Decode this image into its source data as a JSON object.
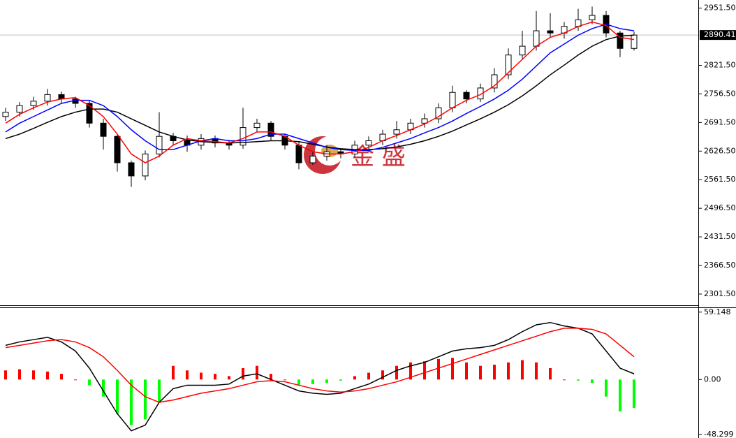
{
  "chart_data": [
    {
      "type": "candlestick",
      "open": [
        2705,
        2715,
        2730,
        2740,
        2755,
        2745,
        2735,
        2690,
        2660,
        2600,
        2570,
        2620,
        2660,
        2650,
        2640,
        2655,
        2645,
        2640,
        2680,
        2690,
        2660,
        2640,
        2600,
        2615,
        2625,
        2620,
        2640,
        2650,
        2665,
        2675,
        2690,
        2700,
        2725,
        2760,
        2745,
        2770,
        2800,
        2845,
        2865,
        2900,
        2895,
        2910,
        2925,
        2935,
        2895,
        2860
      ],
      "high": [
        2725,
        2738,
        2750,
        2768,
        2762,
        2750,
        2742,
        2700,
        2665,
        2605,
        2628,
        2715,
        2668,
        2662,
        2665,
        2662,
        2652,
        2725,
        2700,
        2695,
        2665,
        2648,
        2625,
        2640,
        2632,
        2650,
        2660,
        2675,
        2695,
        2700,
        2712,
        2735,
        2775,
        2765,
        2780,
        2815,
        2860,
        2900,
        2945,
        2940,
        2920,
        2950,
        2955,
        2945,
        2900,
        2898
      ],
      "low": [
        2695,
        2705,
        2720,
        2730,
        2735,
        2725,
        2680,
        2630,
        2580,
        2545,
        2560,
        2612,
        2640,
        2625,
        2630,
        2635,
        2630,
        2632,
        2670,
        2650,
        2630,
        2585,
        2595,
        2605,
        2610,
        2612,
        2630,
        2640,
        2655,
        2665,
        2680,
        2690,
        2715,
        2735,
        2738,
        2760,
        2790,
        2835,
        2855,
        2885,
        2882,
        2900,
        2915,
        2885,
        2840,
        2855
      ],
      "close": [
        2715,
        2730,
        2740,
        2755,
        2745,
        2735,
        2690,
        2660,
        2600,
        2570,
        2620,
        2660,
        2650,
        2640,
        2655,
        2645,
        2640,
        2680,
        2690,
        2660,
        2640,
        2600,
        2615,
        2625,
        2620,
        2640,
        2650,
        2665,
        2675,
        2690,
        2700,
        2725,
        2760,
        2745,
        2770,
        2800,
        2845,
        2865,
        2900,
        2895,
        2910,
        2925,
        2935,
        2895,
        2860,
        2890.41
      ],
      "up_color": "#ffffff",
      "down_color": "#000000",
      "series": [
        {
          "color": "#000000",
          "values": [
            2655,
            2665,
            2678,
            2692,
            2705,
            2715,
            2722,
            2722,
            2715,
            2700,
            2685,
            2670,
            2660,
            2652,
            2648,
            2646,
            2645,
            2646,
            2648,
            2650,
            2650,
            2648,
            2642,
            2636,
            2632,
            2630,
            2630,
            2632,
            2636,
            2642,
            2650,
            2660,
            2672,
            2686,
            2700,
            2715,
            2732,
            2752,
            2775,
            2800,
            2822,
            2845,
            2865,
            2880,
            2888,
            2890
          ]
        },
        {
          "color": "#0000ff",
          "values": [
            2670,
            2690,
            2705,
            2720,
            2735,
            2742,
            2742,
            2730,
            2705,
            2675,
            2650,
            2630,
            2630,
            2640,
            2650,
            2655,
            2650,
            2650,
            2655,
            2665,
            2665,
            2655,
            2645,
            2635,
            2630,
            2628,
            2628,
            2635,
            2645,
            2655,
            2668,
            2680,
            2695,
            2712,
            2728,
            2745,
            2765,
            2790,
            2820,
            2850,
            2870,
            2890,
            2905,
            2915,
            2905,
            2900
          ]
        },
        {
          "color": "#ff0000",
          "values": [
            2690,
            2710,
            2725,
            2738,
            2745,
            2748,
            2730,
            2705,
            2665,
            2620,
            2600,
            2615,
            2640,
            2655,
            2650,
            2648,
            2645,
            2655,
            2670,
            2670,
            2660,
            2640,
            2625,
            2620,
            2620,
            2625,
            2635,
            2650,
            2662,
            2675,
            2688,
            2705,
            2725,
            2742,
            2755,
            2775,
            2805,
            2835,
            2865,
            2885,
            2895,
            2910,
            2920,
            2912,
            2885,
            2880
          ]
        }
      ],
      "ylim": [
        2276,
        2970
      ],
      "yticks": [
        {
          "value": 2951.5,
          "label": "2951.50"
        },
        {
          "value": 2821.5,
          "label": "2821.50"
        },
        {
          "value": 2756.5,
          "label": "2756.50"
        },
        {
          "value": 2691.5,
          "label": "2691.50"
        },
        {
          "value": 2626.5,
          "label": "2626.50"
        },
        {
          "value": 2561.5,
          "label": "2561.50"
        },
        {
          "value": 2496.5,
          "label": "2496.50"
        },
        {
          "value": 2431.5,
          "label": "2431.50"
        },
        {
          "value": 2366.5,
          "label": "2366.50"
        },
        {
          "value": 2301.5,
          "label": "2301.50"
        }
      ],
      "current_price": 2890.41,
      "watermark": "金 盛"
    },
    {
      "type": "macd",
      "histogram": [
        8,
        9,
        8,
        7,
        5,
        0,
        -5,
        -15,
        -30,
        -40,
        -35,
        -20,
        12,
        8,
        6,
        5,
        3,
        10,
        12,
        5,
        0,
        -5,
        -4,
        -3,
        -1,
        3,
        6,
        8,
        12,
        15,
        16,
        18,
        19,
        15,
        12,
        13,
        15,
        17,
        15,
        10,
        0,
        -1,
        -3,
        -15,
        -28,
        -25
      ],
      "positive_color": "#ff0000",
      "negative_color": "#00ff00",
      "series": [
        {
          "color": "#000000",
          "values": [
            30,
            33,
            35,
            37,
            33,
            25,
            10,
            -10,
            -30,
            -45,
            -40,
            -20,
            -8,
            -5,
            -5,
            -5,
            -4,
            3,
            5,
            0,
            -5,
            -10,
            -12,
            -13,
            -12,
            -8,
            -4,
            2,
            8,
            12,
            15,
            20,
            25,
            27,
            28,
            30,
            35,
            42,
            48,
            50,
            47,
            45,
            40,
            25,
            10,
            5
          ]
        },
        {
          "color": "#ff0000",
          "values": [
            28,
            30,
            32,
            34,
            35,
            33,
            28,
            20,
            8,
            -5,
            -15,
            -20,
            -18,
            -15,
            -12,
            -10,
            -8,
            -5,
            -2,
            -1,
            -2,
            -5,
            -8,
            -10,
            -11,
            -10,
            -8,
            -5,
            -2,
            2,
            6,
            10,
            14,
            18,
            22,
            26,
            30,
            34,
            38,
            42,
            45,
            45,
            44,
            40,
            30,
            20
          ]
        }
      ],
      "ylim": [
        -51.3,
        63.3
      ],
      "yticks": [
        59.148,
        {
          "value": 0,
          "label": "0.00"
        },
        -48.299
      ]
    }
  ]
}
